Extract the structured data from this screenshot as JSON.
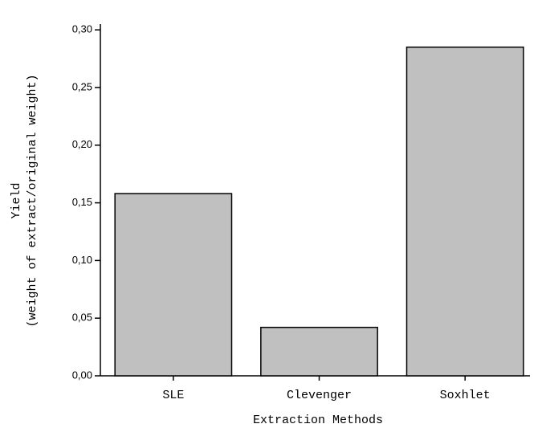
{
  "chart_data": {
    "type": "bar",
    "categories": [
      "SLE",
      "Clevenger",
      "Soxhlet"
    ],
    "values": [
      0.158,
      0.042,
      0.285
    ],
    "color": "#c0c0c0",
    "x_label": "Extraction Methods",
    "y_label": [
      "Yield",
      "(weight of extract/original weight)"
    ],
    "ylim": [
      0,
      0.305
    ],
    "yticks": [
      {
        "value": 0,
        "label": "0,00"
      },
      {
        "value": 0.05,
        "label": "0,05"
      },
      {
        "value": 0.1,
        "label": "0,10"
      },
      {
        "value": 0.15,
        "label": "0,15"
      },
      {
        "value": 0.2,
        "label": "0,20"
      },
      {
        "value": 0.25,
        "label": "0,25"
      },
      {
        "value": 0.3,
        "label": "0,30"
      }
    ]
  }
}
